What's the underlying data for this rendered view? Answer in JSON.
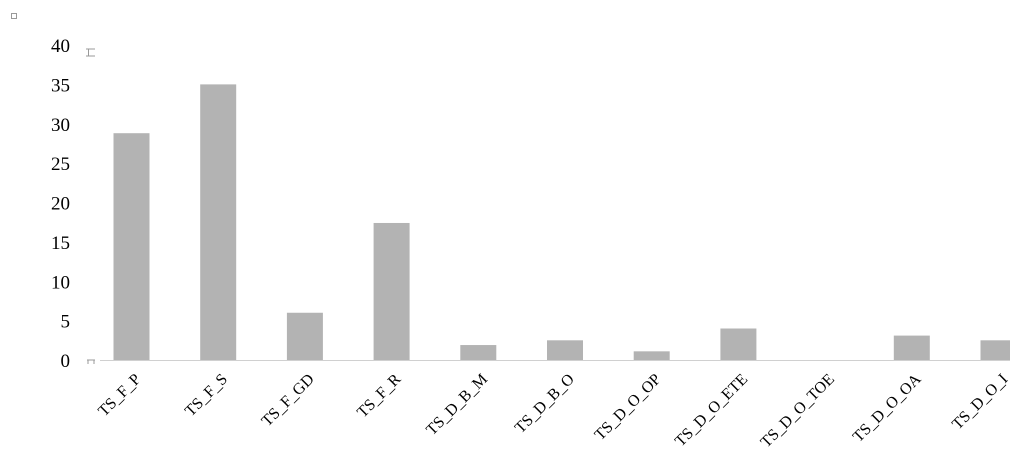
{
  "chart_data": {
    "type": "bar",
    "categories": [
      "TS_F_P",
      "TS_F_S",
      "TS_F_GD",
      "TS_F_R",
      "TS_D_B_M",
      "TS_D_B_O",
      "TS_D_O_OP",
      "TS_D_O_ETE",
      "TS_D_O_TOE",
      "TS_D_O_OA",
      "TS_D_O_I"
    ],
    "values": [
      28.8,
      35,
      6,
      17.4,
      1.9,
      2.5,
      1.1,
      4,
      0,
      3.1,
      2.5
    ],
    "y_ticks": [
      "0",
      "5",
      "10",
      "15",
      "20",
      "25",
      "30",
      "35",
      "40"
    ],
    "ylim": [
      0,
      40
    ],
    "bar_color": "#b3b3b3",
    "grid": false,
    "legend": "none"
  }
}
